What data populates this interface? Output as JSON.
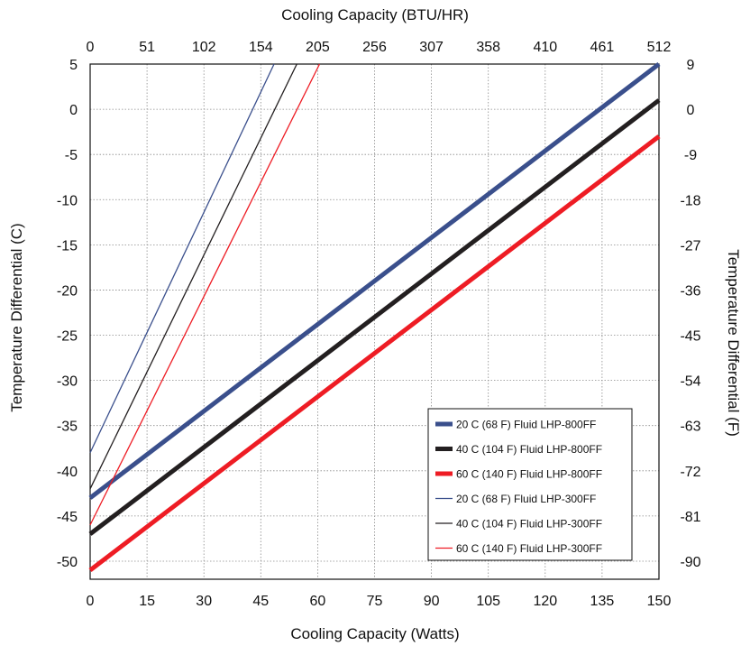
{
  "chart_data": {
    "type": "line",
    "x_bottom": {
      "label": "Cooling Capacity (Watts)",
      "ticks": [
        0,
        15,
        30,
        45,
        60,
        75,
        90,
        105,
        120,
        135,
        150
      ],
      "range": [
        0,
        150
      ]
    },
    "x_top": {
      "label": "Cooling Capacity (BTU/HR)",
      "tick_labels": [
        "0",
        "51",
        "102",
        "154",
        "205",
        "256",
        "307",
        "358",
        "410",
        "461",
        "512"
      ]
    },
    "y_left": {
      "label": "Temperature Differential (C)",
      "ticks": [
        5,
        0,
        -5,
        -10,
        -15,
        -20,
        -25,
        -30,
        -35,
        -40,
        -45,
        -50
      ],
      "range": [
        -52,
        5
      ]
    },
    "y_right": {
      "label": "Temperature Differential (F)",
      "tick_labels": [
        "9",
        "0",
        "-9",
        "-18",
        "-27",
        "-36",
        "-45",
        "-54",
        "-63",
        "-72",
        "-81",
        "-90"
      ]
    },
    "grid": true,
    "legend_position": "bottom-right",
    "series": [
      {
        "name": "20 C (68 F) Fluid LHP-800FF",
        "color": "#3a4f8c",
        "weight": "thick",
        "x": [
          0,
          150
        ],
        "y": [
          -43,
          5
        ]
      },
      {
        "name": "40 C (104 F) Fluid LHP-800FF",
        "color": "#231f20",
        "weight": "thick",
        "x": [
          0,
          150
        ],
        "y": [
          -47,
          1
        ]
      },
      {
        "name": "60 C (140 F) Fluid LHP-800FF",
        "color": "#ee1c24",
        "weight": "thick",
        "x": [
          0,
          150
        ],
        "y": [
          -51,
          -3
        ]
      },
      {
        "name": "20 C (68 F) Fluid LHP-300FF",
        "color": "#3a4f8c",
        "weight": "thin",
        "x": [
          0,
          48.5
        ],
        "y": [
          -38,
          5
        ]
      },
      {
        "name": "40 C (104 F) Fluid LHP-300FF",
        "color": "#231f20",
        "weight": "thin",
        "x": [
          0,
          54.5
        ],
        "y": [
          -42,
          5
        ]
      },
      {
        "name": "60 C (140 F) Fluid LHP-300FF",
        "color": "#ee1c24",
        "weight": "thin",
        "x": [
          0,
          60.5
        ],
        "y": [
          -46,
          5
        ]
      }
    ]
  }
}
